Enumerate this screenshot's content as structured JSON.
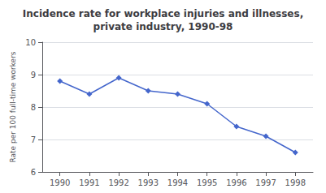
{
  "chart_data": {
    "type": "line",
    "title": "Incidence rate for workplace injuries and illnesses,\nprivate industry, 1990-98",
    "ylabel": "Rate per 100 full-time workers",
    "x": [
      1990,
      1991,
      1992,
      1993,
      1994,
      1995,
      1996,
      1997,
      1998
    ],
    "values": [
      8.8,
      8.4,
      8.9,
      8.5,
      8.4,
      8.1,
      7.4,
      7.1,
      6.6
    ],
    "color": "#4466cc",
    "marker": "diamond",
    "xlim": [
      1989.4,
      1998.6
    ],
    "xticks": [
      1990,
      1991,
      1992,
      1993,
      1994,
      1995,
      1996,
      1997,
      1998
    ],
    "ylim": [
      6,
      10
    ],
    "yticks": [
      6,
      7,
      8,
      9,
      10
    ],
    "grid": true
  }
}
